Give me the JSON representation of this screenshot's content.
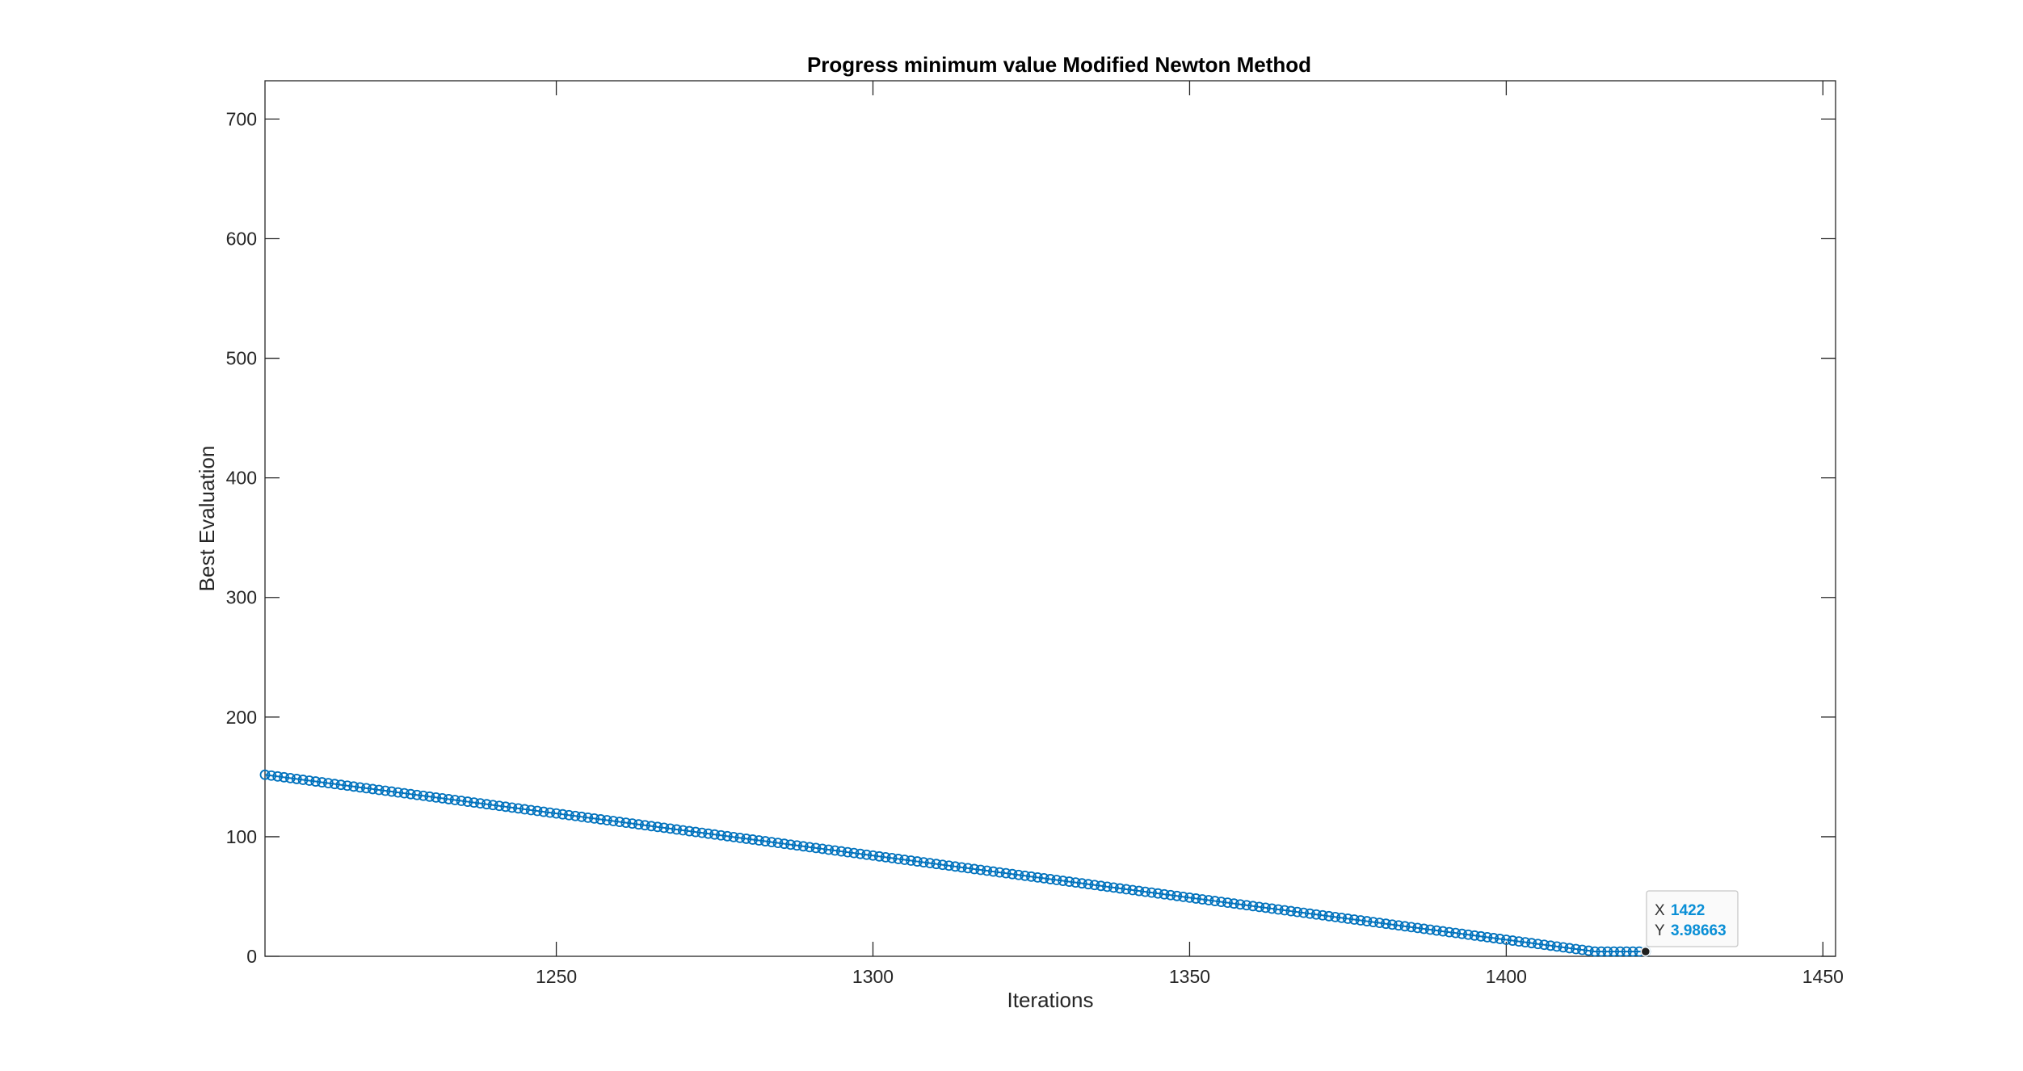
{
  "chart_data": {
    "type": "line",
    "title": "Progress minimum value Modified Newton Method",
    "xlabel": "Iterations",
    "ylabel": "Best Evaluation",
    "xlim": [
      1204,
      1452
    ],
    "ylim": [
      0,
      732
    ],
    "xticks": [
      1250,
      1300,
      1350,
      1400,
      1450
    ],
    "yticks": [
      0,
      100,
      200,
      300,
      400,
      500,
      600,
      700
    ],
    "grid": false,
    "marker": "circle",
    "line_color": "#0072bd",
    "series": [
      {
        "x_start": 1204,
        "x_end": 1422,
        "x_step": 1,
        "x_plateau_start": 1414,
        "y_start": 151.8,
        "y_plateau": 3.98663
      }
    ]
  },
  "datatip": {
    "x_label": "X",
    "x_value": "1422",
    "y_label": "Y",
    "y_value": "3.98663"
  }
}
